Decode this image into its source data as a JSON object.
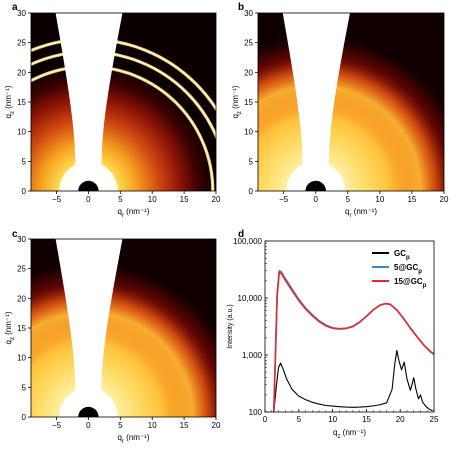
{
  "chart_data": [
    {
      "panel": "a",
      "type": "heatmap",
      "xlabel": {
        "main": "q",
        "sub": "r",
        "unit": " (nm⁻¹)"
      },
      "ylabel": {
        "main": "q",
        "sub": "z",
        "unit": " (nm⁻¹)"
      },
      "xlim": [
        -9,
        20
      ],
      "ylim": [
        0,
        30
      ],
      "xticks": [
        -5,
        0,
        5,
        10,
        15,
        20
      ],
      "yticks": [
        0,
        5,
        10,
        15,
        20,
        25,
        30
      ],
      "rings_q": [
        19.5,
        21.8,
        23.8
      ],
      "halo": "sharp"
    },
    {
      "panel": "b",
      "type": "heatmap",
      "xlabel": {
        "main": "q",
        "sub": "r",
        "unit": " (nm⁻¹)"
      },
      "ylabel": {
        "main": "q",
        "sub": "z",
        "unit": " (nm⁻¹)"
      },
      "xlim": [
        -9,
        20
      ],
      "ylim": [
        0,
        30
      ],
      "xticks": [
        -5,
        0,
        5,
        10,
        15,
        20
      ],
      "yticks": [
        0,
        5,
        10,
        15,
        20,
        25,
        30
      ],
      "rings_q": [],
      "halo": "broad"
    },
    {
      "panel": "c",
      "type": "heatmap",
      "xlabel": {
        "main": "q",
        "sub": "r",
        "unit": " (nm⁻¹)"
      },
      "ylabel": {
        "main": "q",
        "sub": "z",
        "unit": " (nm⁻¹)"
      },
      "xlim": [
        -9,
        20
      ],
      "ylim": [
        0,
        30
      ],
      "xticks": [
        -5,
        0,
        5,
        10,
        15,
        20
      ],
      "yticks": [
        0,
        5,
        10,
        15,
        20,
        25,
        30
      ],
      "rings_q": [],
      "halo": "broad"
    },
    {
      "panel": "d",
      "type": "line",
      "xlabel": {
        "main": "q",
        "sub": "z",
        "unit": " (nm⁻¹)"
      },
      "ylabel": "Intensity (a.u.)",
      "xlim": [
        0,
        25
      ],
      "ylim": [
        100,
        100000
      ],
      "yscale": "log",
      "xticks": [
        0,
        5,
        10,
        15,
        20,
        25
      ],
      "yticks": [
        100,
        1000,
        10000,
        100000
      ],
      "ytick_labels": [
        "100",
        "1,000",
        "10,000",
        "100,000"
      ],
      "legend_position": "top-right",
      "series": [
        {
          "name": "GC",
          "name_sub": "p",
          "name_prefix": "",
          "color": "#000000",
          "x": [
            1.3,
            1.7,
            2.0,
            2.3,
            2.7,
            3.2,
            4,
            5,
            6,
            7,
            8,
            9,
            10,
            11,
            12,
            13,
            14,
            15,
            16,
            17,
            18,
            18.8,
            19.2,
            19.5,
            19.8,
            20.2,
            20.6,
            21.0,
            21.5,
            21.8,
            22.0,
            22.3,
            22.7,
            23.0,
            23.3,
            23.8,
            24.3,
            24.8
          ],
          "y": [
            100,
            300,
            600,
            720,
            560,
            380,
            250,
            190,
            165,
            148,
            138,
            130,
            127,
            124,
            122,
            121,
            122,
            124,
            128,
            134,
            145,
            250,
            700,
            1200,
            800,
            550,
            750,
            380,
            240,
            320,
            400,
            260,
            170,
            200,
            150,
            125,
            112,
            105
          ]
        },
        {
          "name": "GC",
          "name_sub": "p",
          "name_prefix": "5@",
          "color": "#3a86c8",
          "x": [
            1.3,
            1.8,
            2.1,
            2.4,
            3,
            4,
            5,
            6,
            7,
            8,
            9,
            10,
            11,
            12,
            13,
            14,
            15,
            16,
            17,
            17.8,
            18.5,
            19.5,
            20.5,
            21.5,
            22.5,
            23.5,
            24.5,
            25
          ],
          "y": [
            100,
            12000,
            30000,
            29000,
            22000,
            14500,
            9500,
            6700,
            5100,
            4000,
            3350,
            3000,
            2900,
            2950,
            3200,
            3800,
            4800,
            6200,
            7500,
            8000,
            7800,
            6200,
            4400,
            3000,
            2100,
            1500,
            1150,
            1050
          ]
        },
        {
          "name": "GC",
          "name_sub": "p",
          "name_prefix": "15@",
          "color": "#e8282a",
          "x": [
            1.3,
            1.8,
            2.1,
            2.4,
            3,
            4,
            5,
            6,
            7,
            8,
            9,
            10,
            11,
            12,
            13,
            14,
            15,
            16,
            17,
            17.8,
            18.5,
            19.5,
            20.5,
            21.5,
            22.5,
            23.5,
            24.5,
            25
          ],
          "y": [
            100,
            11000,
            28000,
            27000,
            20500,
            13500,
            9000,
            6400,
            4900,
            3850,
            3250,
            2950,
            2850,
            2920,
            3150,
            3750,
            4750,
            6150,
            7450,
            7950,
            7750,
            6150,
            4350,
            2950,
            2080,
            1480,
            1130,
            1030
          ]
        }
      ]
    }
  ],
  "panel_letters": [
    "a",
    "b",
    "c",
    "d"
  ]
}
